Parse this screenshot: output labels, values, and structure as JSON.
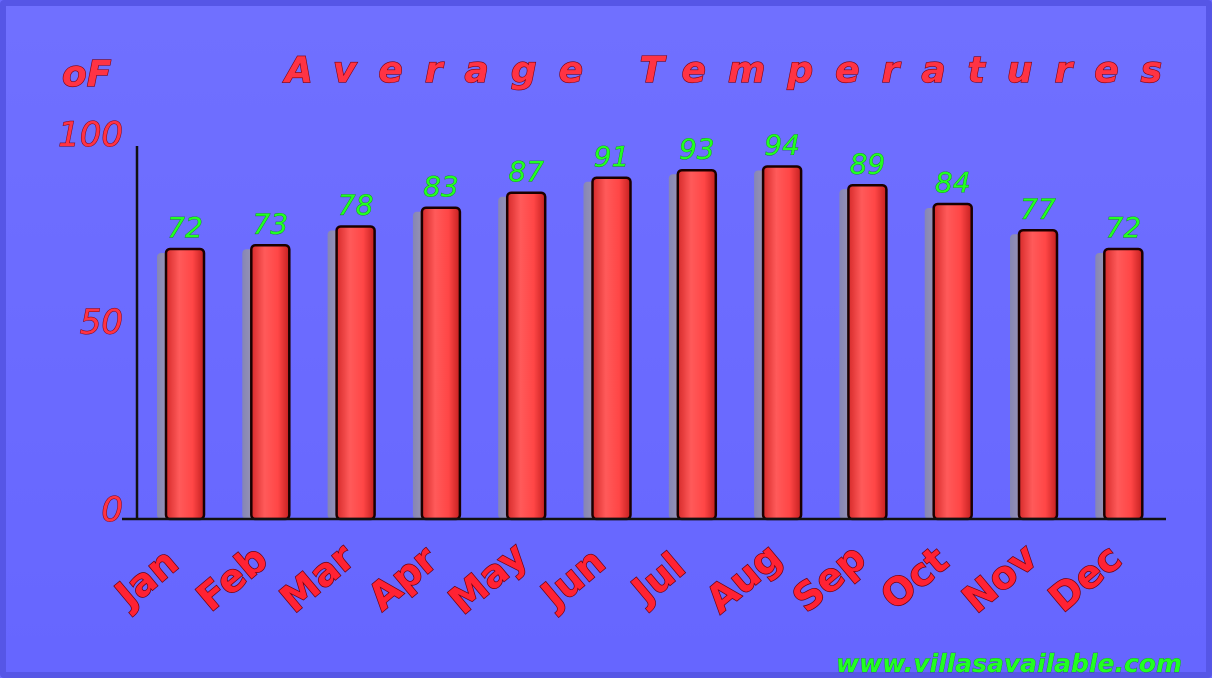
{
  "chart_data": {
    "type": "bar",
    "title": "Average Temperatures",
    "ylabel": "oF",
    "categories": [
      "Jan",
      "Feb",
      "Mar",
      "Apr",
      "May",
      "Jun",
      "Jul",
      "Aug",
      "Sep",
      "Oct",
      "Nov",
      "Dec"
    ],
    "values": [
      72,
      73,
      78,
      83,
      87,
      91,
      93,
      94,
      89,
      84,
      77,
      72
    ],
    "yticks": [
      "0",
      "50",
      "100"
    ],
    "ylim": [
      0,
      100
    ],
    "grid": false,
    "legend": "none",
    "colors": {
      "background": "#6b6bff",
      "bar": "#ff4a4a",
      "value_label": "#22ff22",
      "text": "#ff3344"
    }
  },
  "watermark": "www.villasavailable.com"
}
